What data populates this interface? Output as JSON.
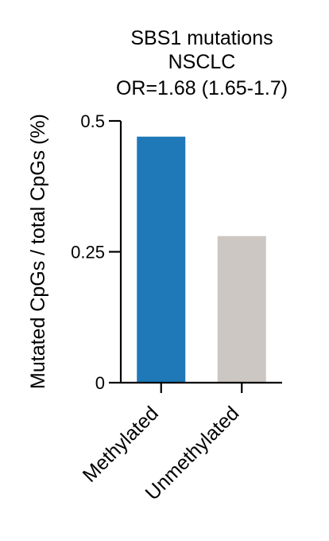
{
  "chart_data": {
    "type": "bar",
    "title": [
      "SBS1 mutations",
      "NSCLC",
      "OR=1.68 (1.65-1.7)"
    ],
    "xlabel": "",
    "ylabel": "Mutated CpGs / total CpGs (%)",
    "categories": [
      "Methylated",
      "Unmethylated"
    ],
    "values": [
      0.47,
      0.28
    ],
    "colors": [
      "#1f78b8",
      "#ccc7c3"
    ],
    "ylim": [
      0,
      0.5
    ],
    "yticks": [
      0,
      0.25,
      0.5
    ],
    "ytick_labels": [
      "0",
      "0.25",
      "0.5"
    ],
    "grid": false,
    "legend": "none"
  }
}
